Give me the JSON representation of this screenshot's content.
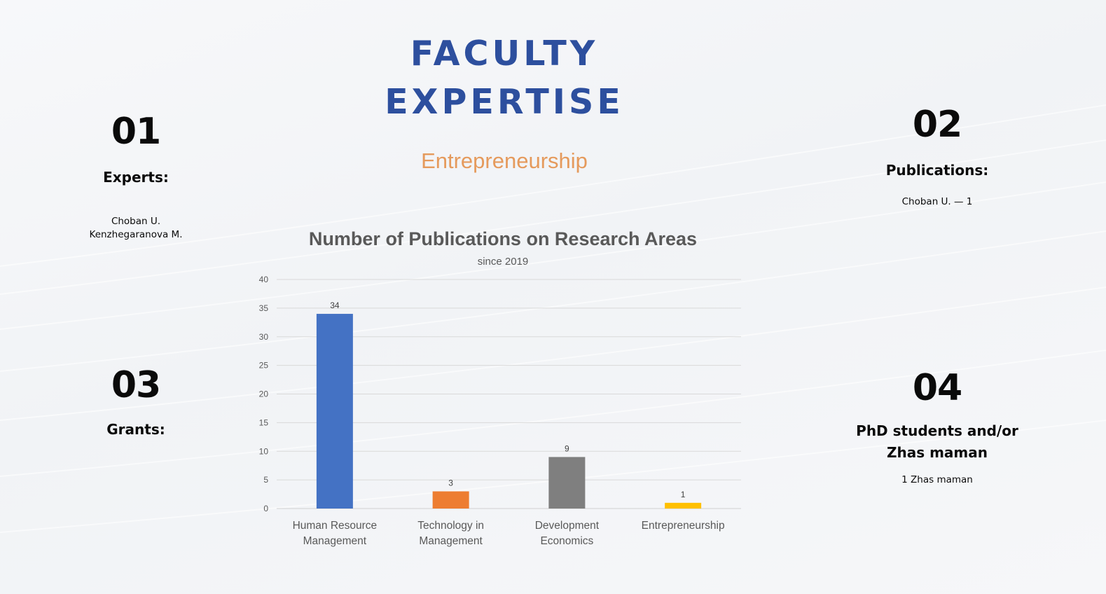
{
  "header": {
    "title_line_1": "FACULTY",
    "title_line_2": "EXPERTISE",
    "subtitle": "Entrepreneurship"
  },
  "blocks": [
    {
      "number": "01",
      "heading": "Experts:",
      "lines": [
        "Choban U.",
        "Kenzhegaranova M."
      ]
    },
    {
      "number": "02",
      "heading": "Publications:",
      "lines": [
        "Choban U. — 1"
      ]
    },
    {
      "number": "03",
      "heading": "Grants:",
      "lines": []
    },
    {
      "number": "04",
      "heading": "PhD students and/or Zhas maman",
      "lines": [
        "1 Zhas maman"
      ]
    }
  ],
  "colors": {
    "title": "#2d4f9e",
    "subtitle": "#e59a5c",
    "gridline": "#d9d9d9",
    "axis_text": "#595959",
    "chart_title": "#595959"
  },
  "chart_data": {
    "type": "bar",
    "title": "Number of Publications on Research Areas",
    "subtitle": "since 2019",
    "categories": [
      [
        "Human Resource",
        "Management"
      ],
      [
        "Technology in",
        "Management"
      ],
      [
        "Development",
        "Economics"
      ],
      [
        "Entrepreneurship"
      ]
    ],
    "values": [
      34,
      3,
      9,
      1
    ],
    "data_labels": [
      "34",
      "3",
      "9",
      "1"
    ],
    "bar_colors": [
      "#4472c4",
      "#ed7d31",
      "#7f7f7f",
      "#ffc000"
    ],
    "ylim": [
      0,
      40
    ],
    "yticks": [
      "0",
      "5",
      "10",
      "15",
      "20",
      "25",
      "30",
      "35",
      "40"
    ],
    "grid": true,
    "legend": "none",
    "xlabel": "",
    "ylabel": ""
  }
}
